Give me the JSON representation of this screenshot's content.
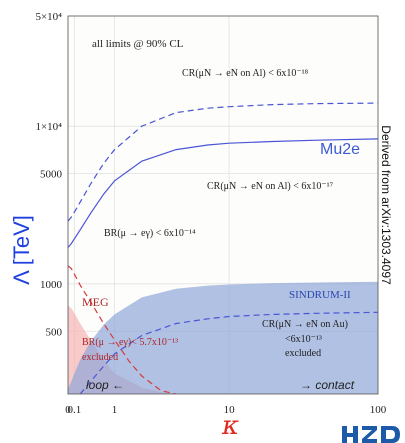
{
  "chart_data": {
    "type": "line",
    "xlabel": "κ",
    "ylabel": "Λ [TeV]",
    "xscale": "log(1+κ)",
    "yscale": "log",
    "xlim": [
      0,
      100
    ],
    "ylim": [
      200,
      50000
    ],
    "grid": true,
    "x_ticks": [
      {
        "value": 0,
        "label": "0"
      },
      {
        "value": 0.1,
        "label": "0.1"
      },
      {
        "value": 1,
        "label": "1"
      },
      {
        "value": 10,
        "label": "10"
      },
      {
        "value": 100,
        "label": "100"
      }
    ],
    "y_ticks": [
      {
        "value": 50000,
        "label": "5×10⁴"
      },
      {
        "value": 10000,
        "label": "1×10⁴"
      },
      {
        "value": 5000,
        "label": "5000"
      },
      {
        "value": 1000,
        "label": "1000"
      },
      {
        "value": 500,
        "label": "500"
      }
    ],
    "series": [
      {
        "label": "CR(μN → eN on Al) < 6x10⁻¹⁸",
        "style": "dashed",
        "color": "#4a55d6",
        "x": [
          0,
          0.05,
          0.1,
          0.2,
          0.4,
          0.7,
          1,
          2,
          4,
          7,
          10,
          20,
          40,
          100
        ],
        "y": [
          2500,
          2650,
          2850,
          3300,
          4300,
          5800,
          7100,
          10000,
          12200,
          13000,
          13300,
          13700,
          13900,
          14000
        ]
      },
      {
        "label": "CR(μN → eN on Al) < 6x10⁻¹⁷",
        "style": "solid",
        "color": "#4a55d6",
        "x": [
          0,
          0.05,
          0.1,
          0.2,
          0.4,
          0.7,
          1,
          2,
          4,
          7,
          10,
          20,
          40,
          100
        ],
        "y": [
          1700,
          1800,
          1930,
          2200,
          2800,
          3700,
          4500,
          6000,
          7100,
          7600,
          7800,
          8000,
          8150,
          8300
        ]
      },
      {
        "label": "BR(μ → eγ) < 6x10⁻¹⁴",
        "style": "dashed",
        "color": "#d83a3a",
        "x": [
          0,
          0.05,
          0.1,
          0.2,
          0.4,
          0.7,
          1,
          1.5,
          2,
          3,
          4
        ],
        "y": [
          1300,
          1250,
          1150,
          980,
          770,
          560,
          440,
          320,
          260,
          210,
          200
        ]
      },
      {
        "label": "CR(μN → eN on Au) < 6x10⁻¹³",
        "style": "dashed",
        "color": "#4a55d6",
        "x": [
          0.2,
          0.4,
          0.7,
          1,
          2,
          4,
          7,
          10,
          20,
          40,
          100
        ],
        "y": [
          200,
          240,
          300,
          360,
          470,
          560,
          600,
          620,
          640,
          650,
          660
        ]
      }
    ],
    "regions": [
      {
        "name": "MEG",
        "fill": "#f5b3b3",
        "label_lines": [
          "MEG",
          "BR(μ → eγ)< 5.7x10⁻¹³",
          "excluded"
        ],
        "x": [
          0,
          0.05,
          0.1,
          0.2,
          0.4,
          0.7,
          1,
          2,
          3,
          4
        ],
        "y": [
          730,
          700,
          650,
          560,
          440,
          330,
          270,
          220,
          205,
          200
        ]
      },
      {
        "name": "SINDRUM-II",
        "fill": "#8ea6d8",
        "label_lines": [
          "SINDRUM-II",
          "CR(μN → eN on Au)",
          "<6x10⁻¹³",
          "excluded"
        ],
        "x": [
          0,
          0.05,
          0.1,
          0.2,
          0.4,
          0.7,
          1,
          2,
          4,
          7,
          10,
          20,
          40,
          100
        ],
        "y": [
          215,
          240,
          270,
          330,
          430,
          550,
          640,
          820,
          930,
          975,
          990,
          1010,
          1020,
          1030
        ]
      }
    ],
    "annotations": {
      "cl_note": "all limits @ 90% CL",
      "mu2e": "Mu2e",
      "loop": "loop ←",
      "contact": "→ contact"
    }
  },
  "source_note": "Derived from arXiv:1303.4097",
  "logo_text": "HZD"
}
